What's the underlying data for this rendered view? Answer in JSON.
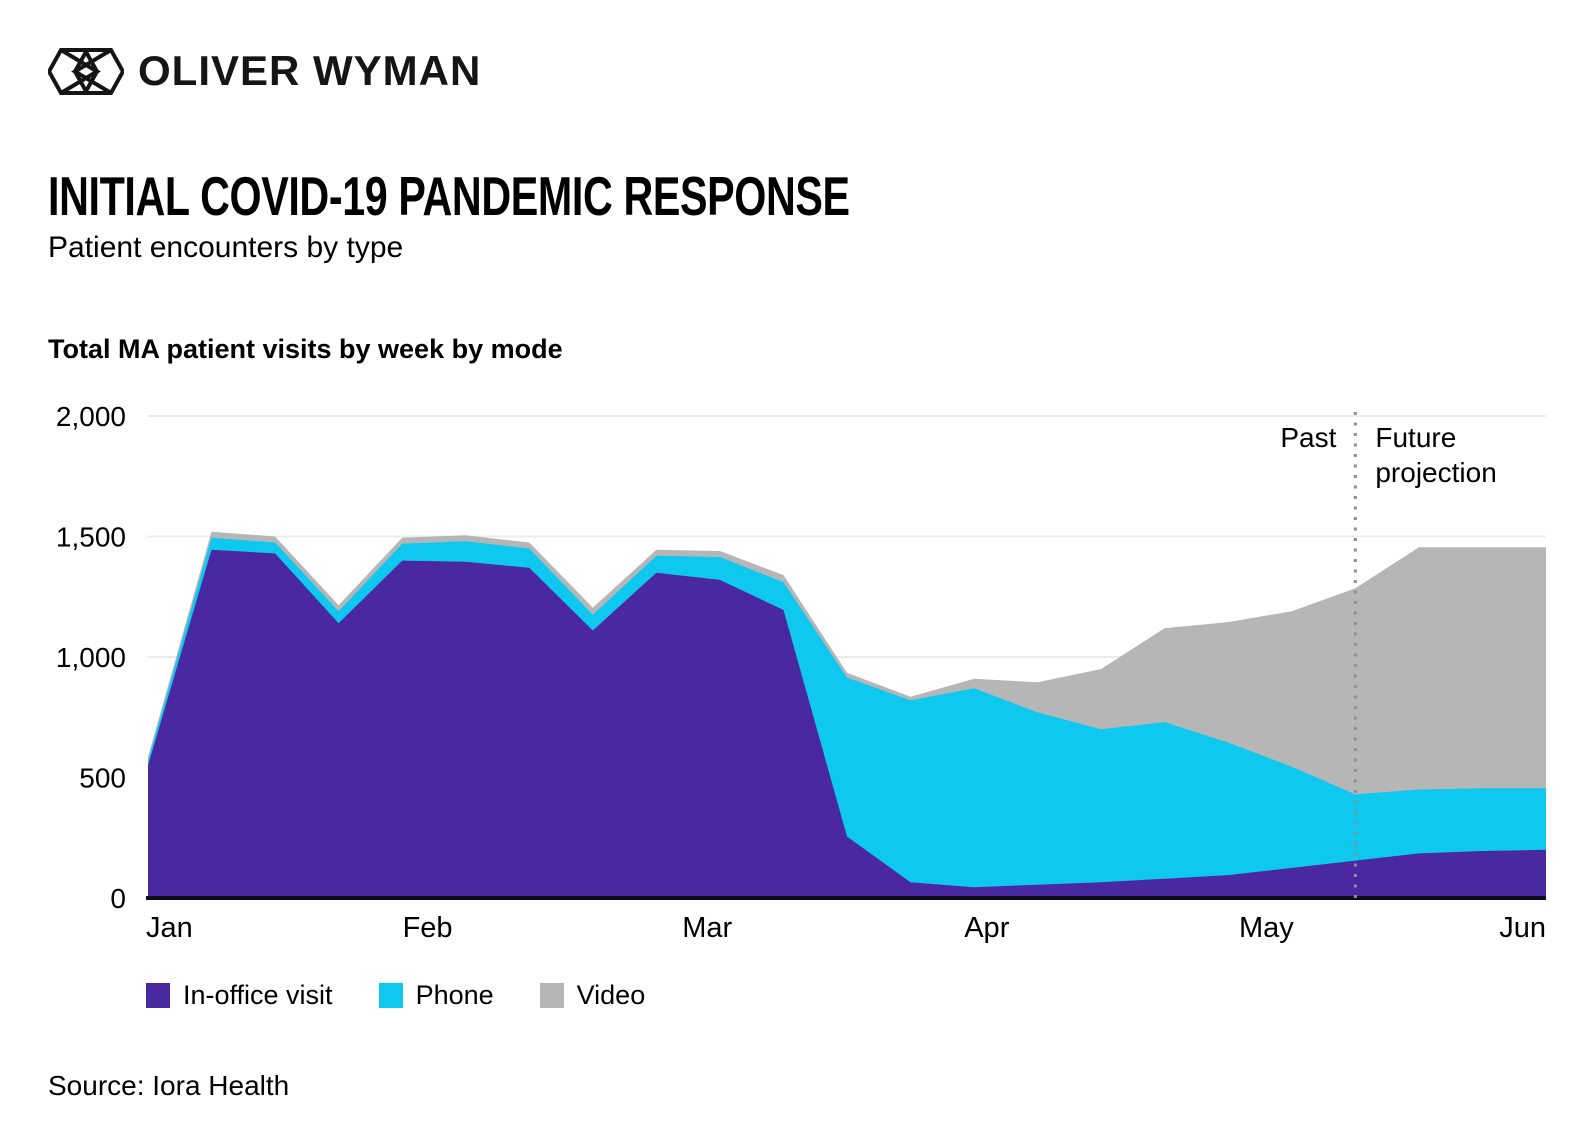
{
  "brand": {
    "wordmark": "OLIVER WYMAN"
  },
  "title": "INITIAL COVID-19 PANDEMIC RESPONSE",
  "subtitle": "Patient encounters by type",
  "source": "Source: Iora Health",
  "colors": {
    "in_office": "#4A28A2",
    "phone": "#0FC8F0",
    "video": "#B6B6B6",
    "grid": "#ECECEC",
    "axis": "#0D0D15",
    "divider": "#8F8F8F",
    "text": "#000000"
  },
  "chart_data": {
    "type": "area",
    "stacked": true,
    "title": "Total MA patient visits by week by mode",
    "x_unit": "week",
    "x_tick_labels": [
      "Jan",
      "Feb",
      "Mar",
      "Apr",
      "May",
      "Jun"
    ],
    "y_ticks": [
      0,
      500,
      1000,
      1500,
      2000
    ],
    "y_tick_labels": [
      "0",
      "500",
      "1,000",
      "1,500",
      "2,000"
    ],
    "ylim": [
      0,
      2000
    ],
    "grid": "horizontal",
    "legend_position": "bottom",
    "series": [
      {
        "name": "In-office visit",
        "color": "#4A28A2",
        "values": [
          550,
          1445,
          1430,
          1140,
          1400,
          1395,
          1370,
          1110,
          1350,
          1320,
          1195,
          255,
          65,
          45,
          55,
          65,
          80,
          95,
          125,
          155,
          185,
          195,
          200
        ]
      },
      {
        "name": "Phone",
        "color": "#0FC8F0",
        "values": [
          20,
          50,
          45,
          50,
          70,
          85,
          80,
          65,
          70,
          95,
          115,
          660,
          755,
          825,
          715,
          635,
          650,
          550,
          420,
          275,
          265,
          260,
          255
        ]
      },
      {
        "name": "Video",
        "color": "#B6B6B6",
        "values": [
          15,
          25,
          25,
          25,
          25,
          25,
          25,
          30,
          25,
          25,
          30,
          20,
          15,
          40,
          125,
          250,
          390,
          500,
          645,
          855,
          1005,
          1000,
          1000
        ]
      }
    ],
    "annotations": {
      "divider_week_index": 19,
      "past_label": "Past",
      "future_label_lines": [
        "Future",
        "projection"
      ]
    }
  }
}
